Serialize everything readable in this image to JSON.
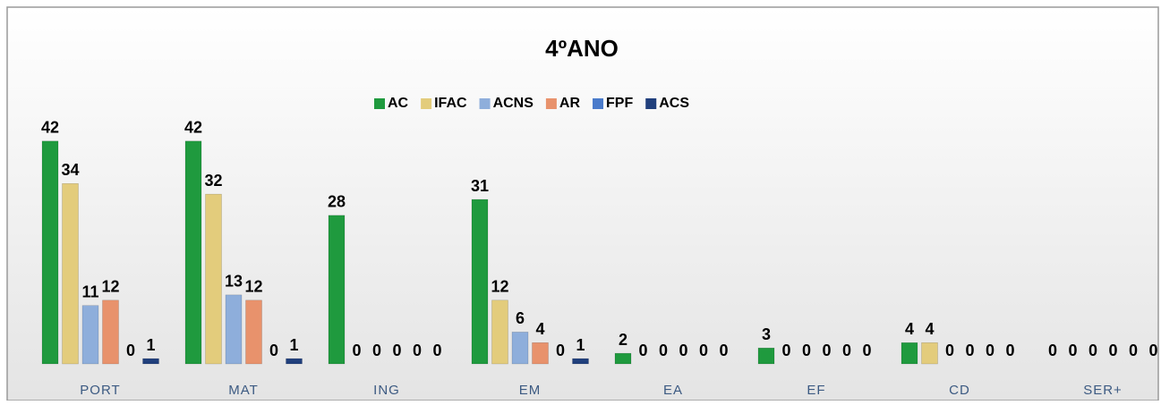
{
  "chart_data": {
    "type": "bar",
    "title": "4ºANO",
    "categories": [
      "PORT",
      "MAT",
      "ING",
      "EM",
      "EA",
      "EF",
      "CD",
      "SER+"
    ],
    "series": [
      {
        "name": "AC",
        "color": "#1f9a3e",
        "values": [
          42,
          42,
          28,
          31,
          2,
          3,
          4,
          0
        ]
      },
      {
        "name": "IFAC",
        "color": "#e3cc7c",
        "values": [
          34,
          32,
          0,
          12,
          0,
          0,
          4,
          0
        ]
      },
      {
        "name": "ACNS",
        "color": "#8eaedb",
        "values": [
          11,
          13,
          0,
          6,
          0,
          0,
          0,
          0
        ]
      },
      {
        "name": "AR",
        "color": "#e8926c",
        "values": [
          12,
          12,
          0,
          4,
          0,
          0,
          0,
          0
        ]
      },
      {
        "name": "FPF",
        "color": "#4a7bcb",
        "values": [
          0,
          0,
          0,
          0,
          0,
          0,
          0,
          0
        ]
      },
      {
        "name": "ACS",
        "color": "#203f7c",
        "values": [
          1,
          1,
          0,
          1,
          0,
          0,
          0,
          0
        ]
      }
    ],
    "ylim": [
      0,
      45
    ],
    "legend": "top"
  }
}
